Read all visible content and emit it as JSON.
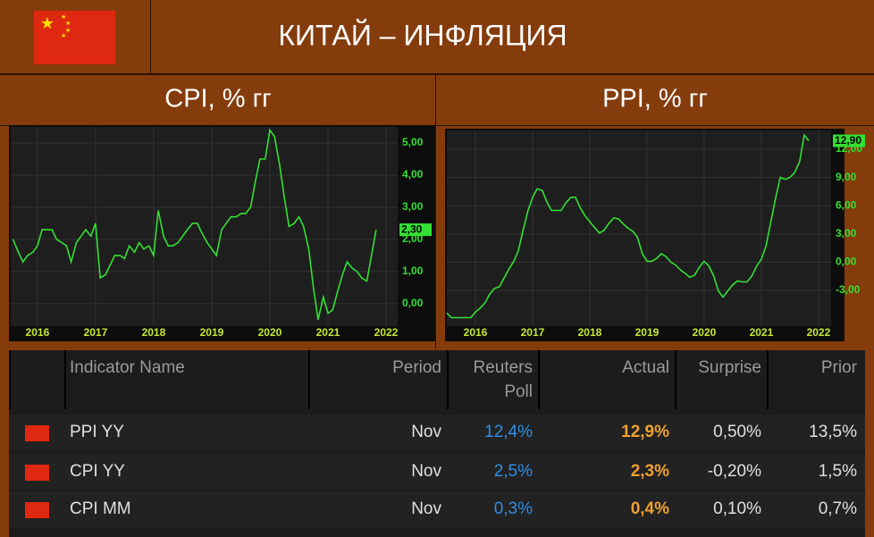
{
  "header": {
    "title": "КИТАЙ – ИНФЛЯЦИЯ"
  },
  "chart_data": [
    {
      "type": "line",
      "title": "CPI, % гг",
      "color": "#33e033",
      "x": [
        2015.58,
        2015.67,
        2015.75,
        2015.83,
        2015.92,
        2016,
        2016.08,
        2016.17,
        2016.25,
        2016.33,
        2016.42,
        2016.5,
        2016.58,
        2016.67,
        2016.75,
        2016.83,
        2016.92,
        2017,
        2017.08,
        2017.17,
        2017.25,
        2017.33,
        2017.42,
        2017.5,
        2017.58,
        2017.67,
        2017.75,
        2017.83,
        2017.92,
        2018,
        2018.08,
        2018.17,
        2018.25,
        2018.33,
        2018.42,
        2018.5,
        2018.58,
        2018.67,
        2018.75,
        2018.83,
        2018.92,
        2019,
        2019.08,
        2019.17,
        2019.25,
        2019.33,
        2019.42,
        2019.5,
        2019.58,
        2019.67,
        2019.75,
        2019.83,
        2019.92,
        2020,
        2020.08,
        2020.17,
        2020.25,
        2020.33,
        2020.42,
        2020.5,
        2020.58,
        2020.67,
        2020.75,
        2020.83,
        2020.92,
        2021,
        2021.08,
        2021.17,
        2021.25,
        2021.33,
        2021.42,
        2021.5,
        2021.58,
        2021.67,
        2021.75,
        2021.83
      ],
      "values": [
        2.0,
        1.6,
        1.3,
        1.5,
        1.6,
        1.8,
        2.3,
        2.3,
        2.3,
        2.0,
        1.9,
        1.8,
        1.3,
        1.9,
        2.1,
        2.3,
        2.1,
        2.5,
        0.8,
        0.9,
        1.2,
        1.5,
        1.5,
        1.4,
        1.8,
        1.6,
        1.9,
        1.7,
        1.8,
        1.5,
        2.9,
        2.1,
        1.8,
        1.8,
        1.9,
        2.1,
        2.3,
        2.5,
        2.5,
        2.2,
        1.9,
        1.7,
        1.5,
        2.3,
        2.5,
        2.7,
        2.7,
        2.8,
        2.8,
        3.0,
        3.8,
        4.5,
        4.5,
        5.4,
        5.2,
        4.3,
        3.3,
        2.4,
        2.5,
        2.7,
        2.4,
        1.7,
        0.5,
        -0.5,
        0.2,
        -0.3,
        -0.2,
        0.4,
        0.9,
        1.3,
        1.1,
        1.0,
        0.8,
        0.7,
        1.5,
        2.3
      ],
      "xlim": [
        2015.54,
        2022.2
      ],
      "xticks": [
        2016,
        2017,
        2018,
        2019,
        2020,
        2021,
        2022
      ],
      "ylim": [
        -0.7,
        5.5
      ],
      "yticks": [
        {
          "value": 0,
          "label": "0,00"
        },
        {
          "value": 1,
          "label": "1,00"
        },
        {
          "value": 2,
          "label": "2,00"
        },
        {
          "value": 3,
          "label": "3,00"
        },
        {
          "value": 4,
          "label": "4,00"
        },
        {
          "value": 5,
          "label": "5,00"
        }
      ],
      "grid": true,
      "annotations": [
        {
          "value": 2.3,
          "label": "2,30"
        }
      ]
    },
    {
      "type": "line",
      "title": "PPI, % гг",
      "color": "#33e033",
      "x": [
        2015.5,
        2015.58,
        2015.67,
        2015.75,
        2015.83,
        2015.92,
        2016,
        2016.08,
        2016.17,
        2016.25,
        2016.33,
        2016.42,
        2016.5,
        2016.58,
        2016.67,
        2016.75,
        2016.83,
        2016.92,
        2017,
        2017.08,
        2017.17,
        2017.25,
        2017.33,
        2017.42,
        2017.5,
        2017.58,
        2017.67,
        2017.75,
        2017.83,
        2017.92,
        2018,
        2018.08,
        2018.17,
        2018.25,
        2018.33,
        2018.42,
        2018.5,
        2018.58,
        2018.67,
        2018.75,
        2018.83,
        2018.92,
        2019,
        2019.08,
        2019.17,
        2019.25,
        2019.33,
        2019.42,
        2019.5,
        2019.58,
        2019.67,
        2019.75,
        2019.83,
        2019.92,
        2020,
        2020.08,
        2020.17,
        2020.25,
        2020.33,
        2020.42,
        2020.5,
        2020.58,
        2020.67,
        2020.75,
        2020.83,
        2020.92,
        2021,
        2021.08,
        2021.17,
        2021.25,
        2021.33,
        2021.42,
        2021.5,
        2021.58,
        2021.67,
        2021.75,
        2021.83
      ],
      "values": [
        -5.4,
        -5.9,
        -5.9,
        -5.9,
        -5.9,
        -5.9,
        -5.3,
        -4.9,
        -4.3,
        -3.4,
        -2.8,
        -2.6,
        -1.7,
        -0.8,
        0.1,
        1.2,
        3.3,
        5.5,
        6.9,
        7.8,
        7.6,
        6.4,
        5.5,
        5.5,
        5.5,
        6.3,
        6.9,
        6.9,
        5.8,
        4.9,
        4.3,
        3.7,
        3.1,
        3.4,
        4.1,
        4.7,
        4.6,
        4.1,
        3.6,
        3.3,
        2.7,
        0.9,
        0.1,
        0.1,
        0.4,
        0.9,
        0.6,
        0.0,
        -0.3,
        -0.8,
        -1.2,
        -1.6,
        -1.4,
        -0.5,
        0.1,
        -0.4,
        -1.5,
        -3.1,
        -3.7,
        -3.0,
        -2.4,
        -2.0,
        -2.1,
        -2.1,
        -1.5,
        -0.4,
        0.3,
        1.7,
        4.4,
        6.8,
        9.0,
        8.8,
        9.0,
        9.5,
        10.7,
        13.5,
        12.9
      ],
      "xlim": [
        2015.5,
        2022.22
      ],
      "xticks": [
        2016,
        2017,
        2018,
        2019,
        2020,
        2021,
        2022
      ],
      "ylim": [
        -6.8,
        14.0
      ],
      "yticks": [
        {
          "value": -3,
          "label": "-3,00"
        },
        {
          "value": 0,
          "label": "0,00"
        },
        {
          "value": 3,
          "label": "3,00"
        },
        {
          "value": 6,
          "label": "6,00"
        },
        {
          "value": 9,
          "label": "9,00"
        },
        {
          "value": 12,
          "label": "12,00"
        }
      ],
      "grid": true,
      "annotations": [
        {
          "value": 12.9,
          "label": "12,90"
        }
      ]
    }
  ],
  "table": {
    "columns": [
      "Indicator Name",
      "Period",
      "Reuters Poll",
      "Actual",
      "Surprise",
      "Prior"
    ],
    "rows": [
      [
        "PPI YY",
        "Nov",
        "12,4%",
        "12,9%",
        "0,50%",
        "13,5%"
      ],
      [
        "CPI YY",
        "Nov",
        "2,5%",
        "2,3%",
        "-0,20%",
        "1,5%"
      ],
      [
        "CPI MM",
        "Nov",
        "0,3%",
        "0,4%",
        "0,10%",
        "0,7%"
      ]
    ]
  }
}
